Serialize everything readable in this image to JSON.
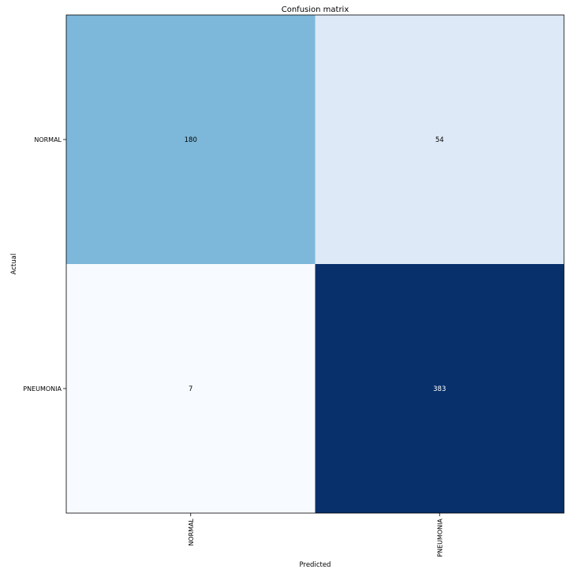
{
  "chart_data": {
    "type": "heatmap",
    "title": "Confusion matrix",
    "xlabel": "Predicted",
    "ylabel": "Actual",
    "x_categories": [
      "NORMAL",
      "PNEUMONIA"
    ],
    "y_categories": [
      "NORMAL",
      "PNEUMONIA"
    ],
    "values": [
      [
        180,
        54
      ],
      [
        7,
        383
      ]
    ],
    "colormap": "Blues",
    "cell_colors": [
      [
        "#7db8da",
        "#dde9f6"
      ],
      [
        "#f7fbff",
        "#08306b"
      ]
    ],
    "cell_text_colors": [
      [
        "#000000",
        "#000000"
      ],
      [
        "#000000",
        "#ffffff"
      ]
    ]
  }
}
